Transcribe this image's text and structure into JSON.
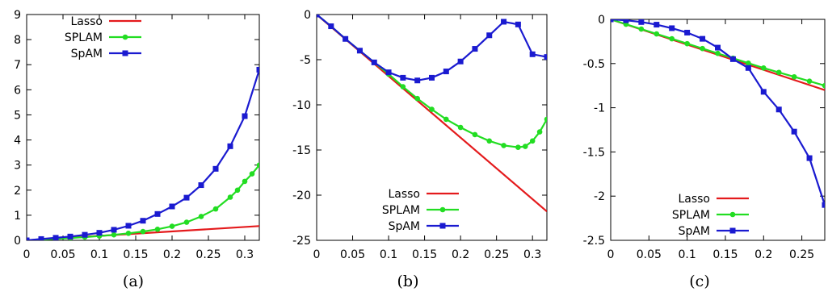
{
  "chart_data": [
    {
      "type": "line",
      "caption": "(a)",
      "xlim": [
        0,
        0.32
      ],
      "ylim": [
        0,
        9
      ],
      "xticks": [
        "0",
        "0.05",
        "0.1",
        "0.15",
        "0.2",
        "0.25",
        "0.3"
      ],
      "yticks": [
        "0",
        "1",
        "2",
        "3",
        "4",
        "5",
        "6",
        "7",
        "8",
        "9"
      ],
      "legend": "top-left",
      "series": [
        {
          "name": "Lasso",
          "color": "#e41a1c",
          "marker": "none",
          "x": [
            0,
            0.32
          ],
          "y": [
            0,
            0.57
          ]
        },
        {
          "name": "SPLAM",
          "color": "#22dd22",
          "marker": "circle",
          "x": [
            0,
            0.02,
            0.04,
            0.06,
            0.08,
            0.1,
            0.12,
            0.14,
            0.16,
            0.18,
            0.2,
            0.22,
            0.24,
            0.26,
            0.28,
            0.29,
            0.3,
            0.31,
            0.32
          ],
          "y": [
            0,
            0.03,
            0.06,
            0.09,
            0.13,
            0.17,
            0.22,
            0.28,
            0.35,
            0.44,
            0.56,
            0.72,
            0.95,
            1.25,
            1.72,
            2.0,
            2.35,
            2.65,
            3.0
          ]
        },
        {
          "name": "SpAM",
          "color": "#1a1ad0",
          "marker": "square",
          "x": [
            0,
            0.02,
            0.04,
            0.06,
            0.08,
            0.1,
            0.12,
            0.14,
            0.16,
            0.18,
            0.2,
            0.22,
            0.24,
            0.26,
            0.28,
            0.3,
            0.32
          ],
          "y": [
            0,
            0.05,
            0.1,
            0.15,
            0.22,
            0.3,
            0.42,
            0.58,
            0.78,
            1.05,
            1.35,
            1.7,
            2.2,
            2.85,
            3.75,
            4.95,
            6.8
          ]
        }
      ]
    },
    {
      "type": "line",
      "caption": "(b)",
      "xlim": [
        0,
        0.32
      ],
      "ylim": [
        -25,
        0
      ],
      "xticks": [
        "0",
        "0.05",
        "0.1",
        "0.15",
        "0.2",
        "0.25",
        "0.3"
      ],
      "yticks": [
        "0",
        "-5",
        "-10",
        "-15",
        "-20",
        "-25"
      ],
      "legend": "bottom-center",
      "series": [
        {
          "name": "Lasso",
          "color": "#e41a1c",
          "marker": "none",
          "x": [
            0,
            0.32
          ],
          "y": [
            0,
            -21.8
          ]
        },
        {
          "name": "SPLAM",
          "color": "#22dd22",
          "marker": "circle",
          "x": [
            0,
            0.02,
            0.04,
            0.06,
            0.08,
            0.1,
            0.12,
            0.14,
            0.16,
            0.18,
            0.2,
            0.22,
            0.24,
            0.26,
            0.28,
            0.29,
            0.3,
            0.31,
            0.32
          ],
          "y": [
            0,
            -1.3,
            -2.7,
            -4.0,
            -5.3,
            -6.6,
            -8.0,
            -9.3,
            -10.5,
            -11.6,
            -12.5,
            -13.3,
            -14.0,
            -14.5,
            -14.7,
            -14.6,
            -14.0,
            -13.0,
            -11.6
          ]
        },
        {
          "name": "SpAM",
          "color": "#1a1ad0",
          "marker": "square",
          "x": [
            0,
            0.02,
            0.04,
            0.06,
            0.08,
            0.1,
            0.12,
            0.14,
            0.16,
            0.18,
            0.2,
            0.22,
            0.24,
            0.26,
            0.28,
            0.3,
            0.32
          ],
          "y": [
            0,
            -1.3,
            -2.7,
            -4.0,
            -5.3,
            -6.4,
            -7.0,
            -7.3,
            -7.0,
            -6.3,
            -5.2,
            -3.8,
            -2.3,
            -0.8,
            -1.1,
            -4.4,
            -4.7
          ]
        }
      ]
    },
    {
      "type": "line",
      "caption": "(c)",
      "xlim": [
        0,
        0.28
      ],
      "ylim": [
        -2.5,
        0
      ],
      "xticks": [
        "0",
        "0.05",
        "0.1",
        "0.15",
        "0.2",
        "0.25"
      ],
      "yticks": [
        "0",
        "-0.5",
        "-1",
        "-1.5",
        "-2",
        "-2.5"
      ],
      "legend": "bottom-center",
      "series": [
        {
          "name": "Lasso",
          "color": "#e41a1c",
          "marker": "none",
          "x": [
            0,
            0.28
          ],
          "y": [
            0,
            -0.8
          ]
        },
        {
          "name": "SPLAM",
          "color": "#22dd22",
          "marker": "circle",
          "x": [
            0,
            0.02,
            0.04,
            0.06,
            0.08,
            0.1,
            0.12,
            0.14,
            0.16,
            0.18,
            0.2,
            0.22,
            0.24,
            0.26,
            0.28
          ],
          "y": [
            0,
            -0.055,
            -0.11,
            -0.165,
            -0.22,
            -0.275,
            -0.33,
            -0.385,
            -0.44,
            -0.495,
            -0.55,
            -0.6,
            -0.65,
            -0.7,
            -0.75
          ]
        },
        {
          "name": "SpAM",
          "color": "#1a1ad0",
          "marker": "square",
          "x": [
            0,
            0.02,
            0.04,
            0.06,
            0.08,
            0.1,
            0.12,
            0.14,
            0.16,
            0.18,
            0.2,
            0.22,
            0.24,
            0.26,
            0.28
          ],
          "y": [
            0,
            -0.01,
            -0.03,
            -0.06,
            -0.1,
            -0.15,
            -0.22,
            -0.32,
            -0.45,
            -0.55,
            -0.82,
            -1.02,
            -1.27,
            -1.57,
            -2.1
          ]
        }
      ]
    }
  ]
}
